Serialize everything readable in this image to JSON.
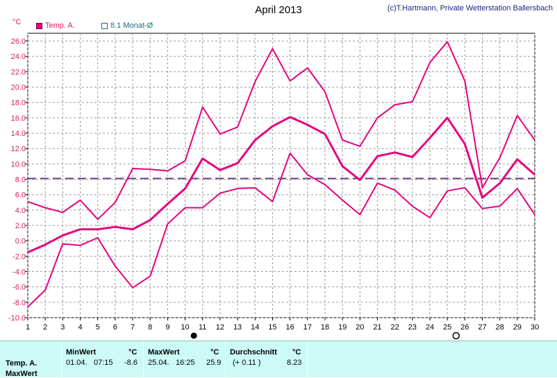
{
  "title": "April 2013",
  "copyright": "(c)T.Hartmann, Private Wetterstation Ballersbach",
  "unit": "°C",
  "legend": {
    "temp": "Temp. A.",
    "avg": "8.1 Monat-Ø"
  },
  "colors": {
    "series": "#e6007e",
    "avg_line": "#6b3f8c",
    "grid": "#9a9a9a",
    "footer_bg": "#ccfaf6"
  },
  "chart_data": {
    "type": "line",
    "ylim": [
      -10,
      27
    ],
    "yticks": [
      -10.0,
      -8.0,
      -6.0,
      -4.0,
      -2.0,
      0.0,
      2.0,
      4.0,
      6.0,
      8.0,
      10.0,
      12.0,
      14.0,
      16.0,
      18.0,
      20.0,
      22.0,
      24.0,
      26.0
    ],
    "ytick_labels": [
      "-10.0",
      "-8.0",
      "-6.0",
      "-4.0",
      "-2.0",
      "0.0",
      "2.0",
      "4.0",
      "6.0",
      "8.0",
      "10.0",
      "12.0",
      "14.0",
      "16.0",
      "18.0",
      "20.0",
      "22.0",
      "24.0",
      "26.0"
    ],
    "x": [
      1,
      2,
      3,
      4,
      5,
      6,
      7,
      8,
      9,
      10,
      11,
      12,
      13,
      14,
      15,
      16,
      17,
      18,
      19,
      20,
      21,
      22,
      23,
      24,
      25,
      26,
      27,
      28,
      29,
      30
    ],
    "series": [
      {
        "name": "max",
        "values": [
          5.1,
          4.3,
          3.7,
          5.3,
          2.8,
          5.0,
          9.4,
          9.3,
          9.1,
          10.4,
          17.4,
          13.9,
          14.8,
          20.7,
          25.0,
          20.8,
          22.5,
          19.4,
          13.1,
          12.3,
          16.0,
          17.7,
          18.1,
          23.2,
          25.9,
          20.8,
          6.9,
          10.8,
          16.3,
          13.1
        ]
      },
      {
        "name": "mean",
        "values": [
          -1.5,
          -0.5,
          0.7,
          1.5,
          1.5,
          1.8,
          1.5,
          2.7,
          4.8,
          6.8,
          10.7,
          9.2,
          10.1,
          13.1,
          14.9,
          16.1,
          15.1,
          13.9,
          9.7,
          7.9,
          11.0,
          11.5,
          10.9,
          13.4,
          16.0,
          12.6,
          5.6,
          7.5,
          10.6,
          8.6
        ]
      },
      {
        "name": "min",
        "values": [
          -8.6,
          -6.4,
          -0.4,
          -0.6,
          0.4,
          -3.3,
          -6.1,
          -4.6,
          2.2,
          4.3,
          4.3,
          6.2,
          6.8,
          6.9,
          5.1,
          11.4,
          8.6,
          7.3,
          5.3,
          3.4,
          7.5,
          6.6,
          4.5,
          3.0,
          6.5,
          6.9,
          4.2,
          4.5,
          6.8,
          3.4
        ]
      }
    ],
    "reference_line": {
      "value": 8.1
    },
    "markers": [
      {
        "x": 10.5,
        "type": "filled-circle"
      },
      {
        "x": 25.5,
        "type": "open-circle"
      }
    ]
  },
  "footer": {
    "row_label": "Temp. A.",
    "row_label2": "MaxWert",
    "min": {
      "header": "MinWert",
      "unit": "°C",
      "date": "01.04.",
      "time": "07:15",
      "value": "-8.6"
    },
    "max": {
      "header": "MaxWert",
      "unit": "°C",
      "date": "25.04.",
      "time": "16:25",
      "value": "25.9"
    },
    "avg": {
      "header": "Durchschnitt",
      "unit": "°C",
      "delta": "(+ 0.11 )",
      "value": "8.23"
    }
  }
}
